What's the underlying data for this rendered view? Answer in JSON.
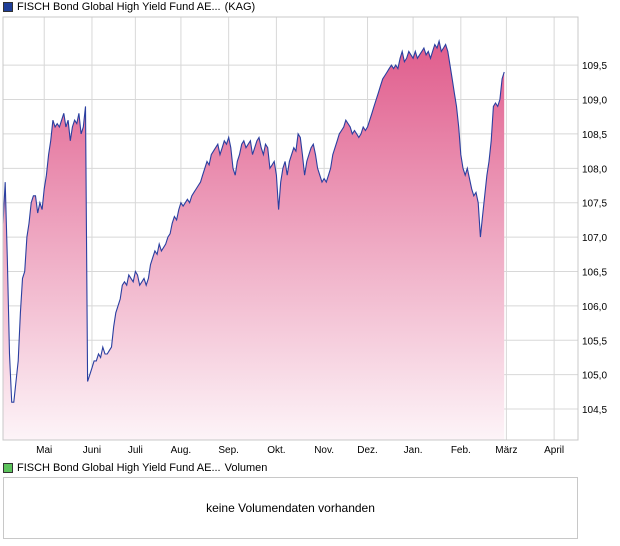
{
  "legend_top": {
    "label": "FISCH Bond Global High Yield Fund AE...",
    "source": "(KAG)",
    "color": "#1f3f99"
  },
  "legend_bottom": {
    "label": "FISCH Bond Global High Yield Fund AE...",
    "source": "Volumen",
    "color": "#5cc35c"
  },
  "volume_panel": {
    "message": "keine Volumendaten vorhanden"
  },
  "chart_data": {
    "type": "area",
    "line_color": "#2a3fa0",
    "fill_top_color": "#e05c8c",
    "fill_bottom_color": "#fdf4f8",
    "grid": true,
    "ylim": [
      104.05,
      110.2
    ],
    "yticks": [
      104.5,
      105.0,
      105.5,
      106.0,
      106.5,
      107.0,
      107.5,
      108.0,
      108.5,
      109.0,
      109.5
    ],
    "ytick_labels": [
      "104,5",
      "105,0",
      "105,5",
      "106,0",
      "106,5",
      "107,0",
      "107,5",
      "108,0",
      "108,5",
      "109,0",
      "109,5"
    ],
    "xlim": [
      0,
      265
    ],
    "xticks": [
      {
        "label": "Mai",
        "x": 19
      },
      {
        "label": "Juni",
        "x": 41
      },
      {
        "label": "Juli",
        "x": 61
      },
      {
        "label": "Aug.",
        "x": 82
      },
      {
        "label": "Sep.",
        "x": 104
      },
      {
        "label": "Okt.",
        "x": 126
      },
      {
        "label": "Nov.",
        "x": 148
      },
      {
        "label": "Dez.",
        "x": 168
      },
      {
        "label": "Jan.",
        "x": 189
      },
      {
        "label": "Feb.",
        "x": 211
      },
      {
        "label": "März",
        "x": 232
      },
      {
        "label": "April",
        "x": 254
      }
    ],
    "points": [
      [
        0,
        107.2
      ],
      [
        1,
        107.8
      ],
      [
        2,
        106.7
      ],
      [
        3,
        105.3
      ],
      [
        4,
        104.6
      ],
      [
        5,
        104.6
      ],
      [
        6,
        104.9
      ],
      [
        7,
        105.2
      ],
      [
        8,
        105.9
      ],
      [
        9,
        106.4
      ],
      [
        10,
        106.5
      ],
      [
        11,
        107.0
      ],
      [
        12,
        107.2
      ],
      [
        13,
        107.5
      ],
      [
        14,
        107.6
      ],
      [
        15,
        107.6
      ],
      [
        16,
        107.35
      ],
      [
        17,
        107.5
      ],
      [
        18,
        107.4
      ],
      [
        19,
        107.7
      ],
      [
        20,
        107.9
      ],
      [
        21,
        108.2
      ],
      [
        22,
        108.4
      ],
      [
        23,
        108.7
      ],
      [
        24,
        108.6
      ],
      [
        25,
        108.65
      ],
      [
        26,
        108.6
      ],
      [
        27,
        108.7
      ],
      [
        28,
        108.8
      ],
      [
        29,
        108.6
      ],
      [
        30,
        108.7
      ],
      [
        31,
        108.4
      ],
      [
        32,
        108.6
      ],
      [
        33,
        108.7
      ],
      [
        34,
        108.65
      ],
      [
        35,
        108.8
      ],
      [
        36,
        108.5
      ],
      [
        37,
        108.6
      ],
      [
        38,
        108.9
      ],
      [
        39,
        104.9
      ],
      [
        40,
        105.0
      ],
      [
        41,
        105.1
      ],
      [
        42,
        105.2
      ],
      [
        43,
        105.2
      ],
      [
        44,
        105.3
      ],
      [
        45,
        105.25
      ],
      [
        46,
        105.4
      ],
      [
        47,
        105.3
      ],
      [
        48,
        105.3
      ],
      [
        49,
        105.35
      ],
      [
        50,
        105.4
      ],
      [
        51,
        105.7
      ],
      [
        52,
        105.9
      ],
      [
        53,
        106.0
      ],
      [
        54,
        106.1
      ],
      [
        55,
        106.3
      ],
      [
        56,
        106.35
      ],
      [
        57,
        106.3
      ],
      [
        58,
        106.45
      ],
      [
        59,
        106.4
      ],
      [
        60,
        106.35
      ],
      [
        61,
        106.5
      ],
      [
        62,
        106.45
      ],
      [
        63,
        106.3
      ],
      [
        64,
        106.35
      ],
      [
        65,
        106.4
      ],
      [
        66,
        106.3
      ],
      [
        67,
        106.4
      ],
      [
        68,
        106.6
      ],
      [
        69,
        106.7
      ],
      [
        70,
        106.8
      ],
      [
        71,
        106.75
      ],
      [
        72,
        106.9
      ],
      [
        73,
        106.8
      ],
      [
        74,
        106.85
      ],
      [
        75,
        106.9
      ],
      [
        76,
        107.0
      ],
      [
        77,
        107.05
      ],
      [
        78,
        107.2
      ],
      [
        79,
        107.3
      ],
      [
        80,
        107.25
      ],
      [
        81,
        107.4
      ],
      [
        82,
        107.5
      ],
      [
        83,
        107.45
      ],
      [
        84,
        107.5
      ],
      [
        85,
        107.55
      ],
      [
        86,
        107.5
      ],
      [
        87,
        107.6
      ],
      [
        88,
        107.65
      ],
      [
        89,
        107.7
      ],
      [
        90,
        107.75
      ],
      [
        91,
        107.8
      ],
      [
        92,
        107.9
      ],
      [
        93,
        108.0
      ],
      [
        94,
        108.1
      ],
      [
        95,
        108.05
      ],
      [
        96,
        108.2
      ],
      [
        97,
        108.25
      ],
      [
        98,
        108.3
      ],
      [
        99,
        108.35
      ],
      [
        100,
        108.2
      ],
      [
        101,
        108.3
      ],
      [
        102,
        108.4
      ],
      [
        103,
        108.35
      ],
      [
        104,
        108.45
      ],
      [
        105,
        108.3
      ],
      [
        106,
        108.0
      ],
      [
        107,
        107.9
      ],
      [
        108,
        108.1
      ],
      [
        109,
        108.2
      ],
      [
        110,
        108.35
      ],
      [
        111,
        108.4
      ],
      [
        112,
        108.3
      ],
      [
        113,
        108.35
      ],
      [
        114,
        108.4
      ],
      [
        115,
        108.2
      ],
      [
        116,
        108.3
      ],
      [
        117,
        108.4
      ],
      [
        118,
        108.45
      ],
      [
        119,
        108.3
      ],
      [
        120,
        108.2
      ],
      [
        121,
        108.35
      ],
      [
        122,
        108.3
      ],
      [
        123,
        108.0
      ],
      [
        124,
        108.05
      ],
      [
        125,
        108.1
      ],
      [
        126,
        107.9
      ],
      [
        127,
        107.4
      ],
      [
        128,
        107.8
      ],
      [
        129,
        108.0
      ],
      [
        130,
        108.1
      ],
      [
        131,
        107.9
      ],
      [
        132,
        108.1
      ],
      [
        133,
        108.2
      ],
      [
        134,
        108.3
      ],
      [
        135,
        108.25
      ],
      [
        136,
        108.5
      ],
      [
        137,
        108.45
      ],
      [
        138,
        108.2
      ],
      [
        139,
        107.9
      ],
      [
        140,
        108.1
      ],
      [
        141,
        108.2
      ],
      [
        142,
        108.3
      ],
      [
        143,
        108.35
      ],
      [
        144,
        108.2
      ],
      [
        145,
        108.0
      ],
      [
        146,
        107.9
      ],
      [
        147,
        107.8
      ],
      [
        148,
        107.85
      ],
      [
        149,
        107.8
      ],
      [
        150,
        107.9
      ],
      [
        151,
        108.0
      ],
      [
        152,
        108.2
      ],
      [
        153,
        108.3
      ],
      [
        154,
        108.4
      ],
      [
        155,
        108.5
      ],
      [
        156,
        108.55
      ],
      [
        157,
        108.6
      ],
      [
        158,
        108.7
      ],
      [
        159,
        108.65
      ],
      [
        160,
        108.6
      ],
      [
        161,
        108.5
      ],
      [
        162,
        108.55
      ],
      [
        163,
        108.5
      ],
      [
        164,
        108.45
      ],
      [
        165,
        108.5
      ],
      [
        166,
        108.6
      ],
      [
        167,
        108.55
      ],
      [
        168,
        108.6
      ],
      [
        169,
        108.7
      ],
      [
        170,
        108.8
      ],
      [
        171,
        108.9
      ],
      [
        172,
        109.0
      ],
      [
        173,
        109.1
      ],
      [
        174,
        109.2
      ],
      [
        175,
        109.3
      ],
      [
        176,
        109.35
      ],
      [
        177,
        109.4
      ],
      [
        178,
        109.45
      ],
      [
        179,
        109.5
      ],
      [
        180,
        109.45
      ],
      [
        181,
        109.5
      ],
      [
        182,
        109.45
      ],
      [
        183,
        109.6
      ],
      [
        184,
        109.7
      ],
      [
        185,
        109.55
      ],
      [
        186,
        109.6
      ],
      [
        187,
        109.7
      ],
      [
        188,
        109.65
      ],
      [
        189,
        109.6
      ],
      [
        190,
        109.7
      ],
      [
        191,
        109.6
      ],
      [
        192,
        109.65
      ],
      [
        193,
        109.7
      ],
      [
        194,
        109.75
      ],
      [
        195,
        109.65
      ],
      [
        196,
        109.7
      ],
      [
        197,
        109.6
      ],
      [
        198,
        109.7
      ],
      [
        199,
        109.8
      ],
      [
        200,
        109.75
      ],
      [
        201,
        109.85
      ],
      [
        202,
        109.7
      ],
      [
        203,
        109.75
      ],
      [
        204,
        109.8
      ],
      [
        205,
        109.7
      ],
      [
        206,
        109.5
      ],
      [
        207,
        109.3
      ],
      [
        208,
        109.1
      ],
      [
        209,
        108.9
      ],
      [
        210,
        108.6
      ],
      [
        211,
        108.2
      ],
      [
        212,
        108.0
      ],
      [
        213,
        107.9
      ],
      [
        214,
        108.0
      ],
      [
        215,
        107.85
      ],
      [
        216,
        107.7
      ],
      [
        217,
        107.6
      ],
      [
        218,
        107.65
      ],
      [
        219,
        107.5
      ],
      [
        220,
        107.0
      ],
      [
        221,
        107.3
      ],
      [
        222,
        107.6
      ],
      [
        223,
        107.9
      ],
      [
        224,
        108.1
      ],
      [
        225,
        108.4
      ],
      [
        226,
        108.9
      ],
      [
        227,
        108.95
      ],
      [
        228,
        108.9
      ],
      [
        229,
        109.0
      ],
      [
        230,
        109.3
      ],
      [
        231,
        109.4
      ]
    ]
  }
}
